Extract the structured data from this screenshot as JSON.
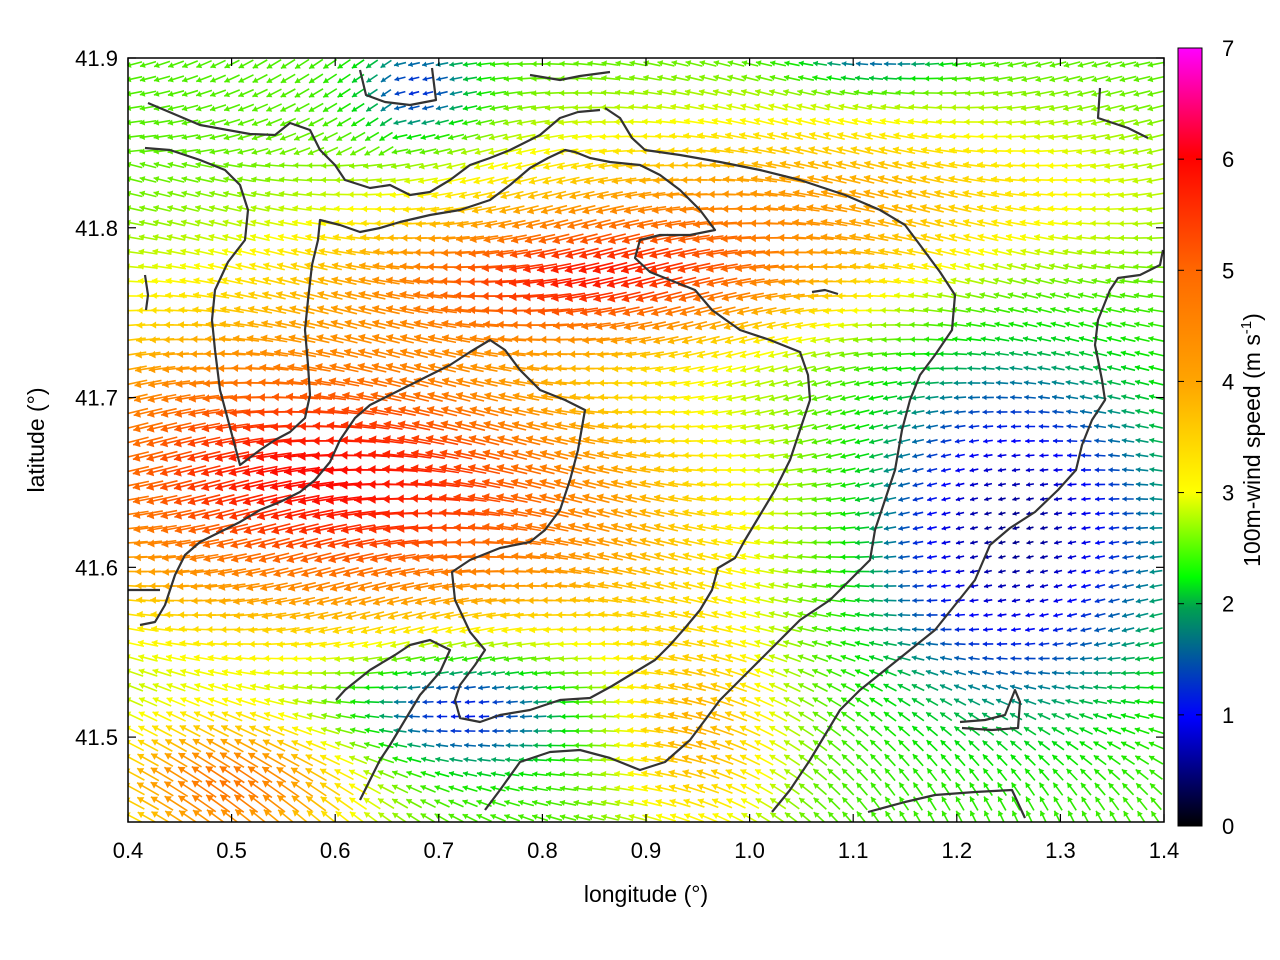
{
  "chart_data": {
    "type": "vector-field",
    "title": "",
    "xlabel": "longitude (°)",
    "ylabel": "latitude (°)",
    "xlim": [
      0.4,
      1.4
    ],
    "ylim": [
      41.45,
      41.9
    ],
    "xticks": [
      "0.4",
      "0.5",
      "0.6",
      "0.7",
      "0.8",
      "0.9",
      "1.0",
      "1.1",
      "1.2",
      "1.3",
      "1.4"
    ],
    "yticks": [
      "41.5",
      "41.6",
      "41.7",
      "41.8",
      "41.9"
    ],
    "colorbar": {
      "label": "100m-wind speed (m s",
      "label_superscript": "-1",
      "label_suffix": ")",
      "range": [
        0,
        7
      ],
      "ticks": [
        "0",
        "1",
        "2",
        "3",
        "4",
        "5",
        "6",
        "7"
      ],
      "palette": [
        "#000000",
        "#0000ff",
        "#00ff00",
        "#ffff00",
        "#ffa500",
        "#ff6a00",
        "#ff0000",
        "#ff00ff"
      ]
    },
    "grid": false,
    "legend": "none"
  }
}
